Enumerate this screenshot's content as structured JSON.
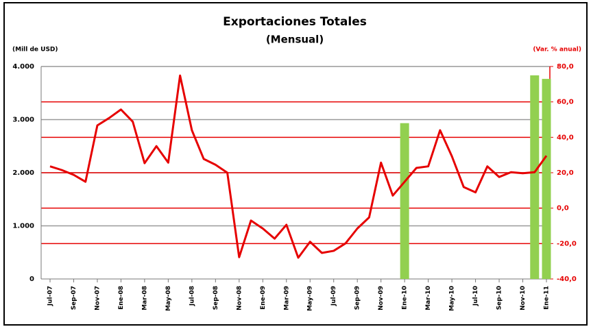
{
  "chart_data": {
    "type": "line",
    "title": "Exportaciones Totales",
    "subtitle": "(Mensual)",
    "y_label": "(Mill de USD)",
    "y2_label": "(Var. % anual)",
    "categories": [
      "Jul-07",
      null,
      "Sep-07",
      null,
      "Nov-07",
      null,
      "Ene-08",
      null,
      "Mar-08",
      null,
      "May-08",
      null,
      "Jul-08",
      null,
      "Sep-08",
      null,
      "Nov-08",
      null,
      "Ene-09",
      null,
      "Mar-09",
      null,
      "May-09",
      null,
      "Jul-09",
      null,
      "Sep-09",
      null,
      "Nov-09",
      null,
      "Ene-10",
      null,
      "Mar-10",
      null,
      "May-10",
      null,
      "Jul-10",
      null,
      "Sep-10",
      null,
      "Nov-10",
      null,
      "Ene-11"
    ],
    "series": [
      {
        "type": "line",
        "color": "#e60000",
        "values": [
          2120,
          2050,
          1960,
          1830,
          2890,
          3030,
          3190,
          2960,
          2180,
          2500,
          2190,
          3830,
          2800,
          2260,
          2150,
          2000,
          410,
          1100,
          950,
          760,
          1020,
          400,
          700,
          490,
          530,
          670,
          950,
          1160,
          2190,
          1570,
          1830,
          2090,
          2120,
          2800,
          2310,
          1730,
          1630,
          2120,
          1920,
          2010,
          1990,
          2010,
          2320
        ]
      },
      {
        "type": "bar",
        "axis": "y2",
        "color": "#92d050",
        "values": [
          null,
          null,
          null,
          null,
          null,
          null,
          null,
          null,
          null,
          null,
          null,
          null,
          null,
          null,
          null,
          null,
          null,
          null,
          null,
          null,
          null,
          null,
          null,
          null,
          null,
          null,
          null,
          null,
          null,
          null,
          48,
          null,
          null,
          null,
          null,
          null,
          null,
          null,
          null,
          null,
          null,
          75,
          73
        ]
      }
    ],
    "ylim": [
      0,
      4000
    ],
    "yticks": [
      0,
      {
        "value": 1000,
        "label": "1.000"
      },
      {
        "value": 2000,
        "label": "2.000"
      },
      {
        "value": 3000,
        "label": "3.000"
      },
      {
        "value": 4000,
        "label": "4.000"
      }
    ],
    "y2lim": [
      -40,
      80
    ],
    "y2ticks": [
      {
        "value": -40,
        "label": "-40,0"
      },
      {
        "value": -20,
        "label": "-20,0"
      },
      {
        "value": 0,
        "label": "0,0"
      },
      {
        "value": 20,
        "label": "20,0"
      },
      {
        "value": 40,
        "label": "40,0"
      },
      {
        "value": 60,
        "label": "60,0"
      },
      {
        "value": 80,
        "label": "80,0"
      }
    ],
    "grid": true,
    "y_grid_color": "#999999",
    "y2_grid_color": "#e60000"
  }
}
